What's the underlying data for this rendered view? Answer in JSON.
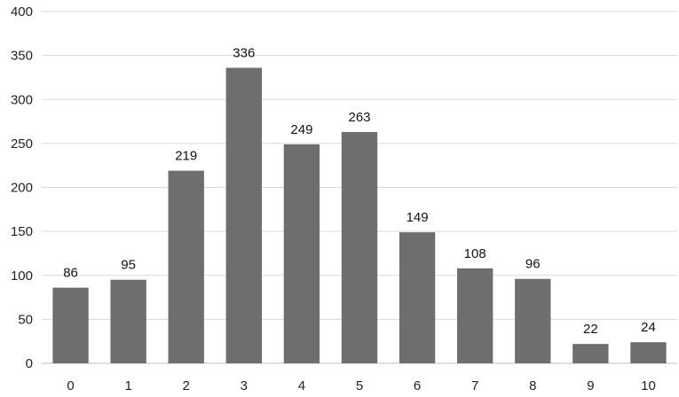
{
  "chart_data": {
    "type": "bar",
    "title": "",
    "xlabel": "",
    "ylabel": "",
    "categories": [
      "0",
      "1",
      "2",
      "3",
      "4",
      "5",
      "6",
      "7",
      "8",
      "9",
      "10"
    ],
    "values": [
      86,
      95,
      219,
      336,
      249,
      263,
      149,
      108,
      96,
      22,
      24
    ],
    "ylim": [
      0,
      400
    ],
    "y_ticks": [
      0,
      50,
      100,
      150,
      200,
      250,
      300,
      350,
      400
    ],
    "grid": true,
    "legend": "none",
    "data_labels": true,
    "colors": {
      "bar": "#6e6e6e",
      "grid": "#d9d9d9",
      "text": "#222222"
    }
  }
}
